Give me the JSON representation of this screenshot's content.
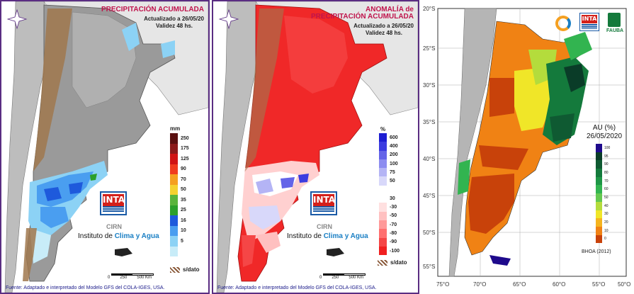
{
  "panel1": {
    "title": "PRECIPITACIÓN ACUMULADA",
    "updated": "Actualizado a 26/05/20",
    "validity": "Validez 48 hs.",
    "unit": "mm",
    "legend": [
      {
        "label": "250",
        "color": "#5a1010"
      },
      {
        "label": "175",
        "color": "#8b1a1a"
      },
      {
        "label": "125",
        "color": "#d01414"
      },
      {
        "label": "90",
        "color": "#f03c1e"
      },
      {
        "label": "70",
        "color": "#f5a020"
      },
      {
        "label": "50",
        "color": "#f5d230"
      },
      {
        "label": "35",
        "color": "#5ab43c"
      },
      {
        "label": "25",
        "color": "#2ca02c"
      },
      {
        "label": "16",
        "color": "#1e5adc"
      },
      {
        "label": "10",
        "color": "#4a9ef0"
      },
      {
        "label": "5",
        "color": "#8cd2f5"
      },
      {
        "label": "",
        "color": "#c8ecf8"
      }
    ],
    "sdato": "s/dato",
    "scale_labels": [
      "0",
      "250",
      "500 Km"
    ],
    "cirn": "CIRN",
    "inst_prefix": "Instituto de ",
    "inst_bold": "Clima y Agua",
    "source": "Fuente: Adaptado e interpretado del Modelo GFS del COLA-IGES, USA."
  },
  "panel2": {
    "title1": "ANOMALÍA de",
    "title2": "PRECIPITACIÓN ACUMULADA",
    "updated": "Actualizado a 26/05/20",
    "validity": "Validez 48 hs.",
    "unit": "%",
    "legend": [
      {
        "label": "600",
        "color": "#1e1ed2"
      },
      {
        "label": "400",
        "color": "#3c3ce0"
      },
      {
        "label": "200",
        "color": "#6464e8"
      },
      {
        "label": "100",
        "color": "#8c8cf0"
      },
      {
        "label": "75",
        "color": "#b4b4f5"
      },
      {
        "label": "50",
        "color": "#d8d8fa"
      },
      {
        "label": "",
        "color": "#ffffff"
      },
      {
        "label": "30",
        "color": "#ffffff"
      },
      {
        "label": "-30",
        "color": "#ffe0e0"
      },
      {
        "label": "-50",
        "color": "#ffc0c0"
      },
      {
        "label": "-70",
        "color": "#ff9a9a"
      },
      {
        "label": "-80",
        "color": "#ff7070"
      },
      {
        "label": "-90",
        "color": "#f54646"
      },
      {
        "label": "-100",
        "color": "#f02020"
      }
    ],
    "sdato": "s/dato",
    "scale_labels": [
      "0",
      "250",
      "500 Km"
    ],
    "cirn": "CIRN",
    "inst_prefix": "Instituto de ",
    "inst_bold": "Clima y Agua",
    "source": "Fuente: Adaptado e interpretado del Modelo GFS del COLA-IGES, USA."
  },
  "panel3": {
    "y_ticks": [
      "20°S",
      "25°S",
      "30°S",
      "35°S",
      "40°S",
      "45°S",
      "50°S",
      "55°S"
    ],
    "x_ticks": [
      "75°O",
      "70°O",
      "65°O",
      "60°O",
      "55°O",
      "50°O"
    ],
    "title1": "AU (%)",
    "title2": "26/05/2020",
    "legend": [
      {
        "label": "100",
        "color": "#1e0a8c"
      },
      {
        "label": "95",
        "color": "#0a3c28"
      },
      {
        "label": "90",
        "color": "#0f5a32"
      },
      {
        "label": "80",
        "color": "#147a3c"
      },
      {
        "label": "70",
        "color": "#1e9646"
      },
      {
        "label": "60",
        "color": "#32b450"
      },
      {
        "label": "50",
        "color": "#64c850"
      },
      {
        "label": "40",
        "color": "#b4dc3c"
      },
      {
        "label": "30",
        "color": "#f0e628"
      },
      {
        "label": "20",
        "color": "#f5b41e"
      },
      {
        "label": "10",
        "color": "#f08214"
      },
      {
        "label": "0",
        "color": "#c8420a"
      }
    ],
    "bhoa": "BHOA (2012)",
    "fauba": "FAUBA",
    "inta": "INTA"
  },
  "inta_logo": "INTA"
}
